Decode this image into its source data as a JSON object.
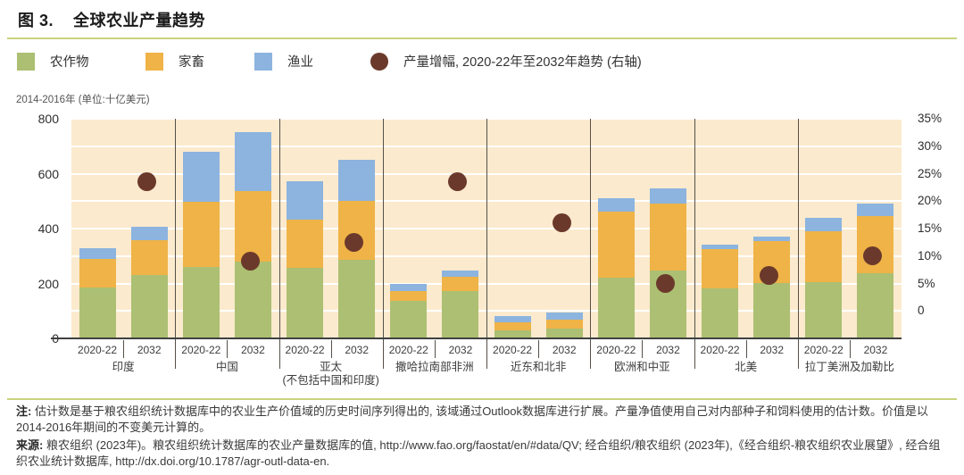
{
  "figure": {
    "title_prefix": "图 3.",
    "title": "全球农业产量趋势"
  },
  "legend": {
    "items": [
      {
        "label": "农作物",
        "shape": "square",
        "color": "#ACBF72"
      },
      {
        "label": "家畜",
        "shape": "square",
        "color": "#EFB347"
      },
      {
        "label": "渔业",
        "shape": "square",
        "color": "#8CB4DF"
      },
      {
        "label": "产量增幅, 2020-22年至2032年趋势 (右轴)",
        "shape": "circle",
        "color": "#6B392B"
      }
    ]
  },
  "chart_data": {
    "type": "bar",
    "stacked": true,
    "title": "全球农业产量趋势",
    "unit_label": "2014-2016年 (单位:十亿美元)",
    "series_names": [
      "农作物",
      "家畜",
      "渔业"
    ],
    "bar_labels": [
      "2020-22",
      "2032"
    ],
    "left_axis": {
      "min": 0,
      "max": 800,
      "ticks": [
        0,
        200,
        400,
        600,
        800
      ],
      "gridline_step": 100
    },
    "right_axis": {
      "tick_labels": [
        "0",
        "5%",
        "10%",
        "15%",
        "20%",
        "25%",
        "30%",
        "35%"
      ],
      "min_pct": 0,
      "max_pct": 35
    },
    "legend_note": "条形为堆积值(十亿美元, 左轴); 圆点为产量增幅(%, 右轴)",
    "groups": [
      {
        "name": "印度",
        "bars": [
          [
            185,
            104,
            39
          ],
          [
            230,
            128,
            48
          ]
        ],
        "growth_pct": 23.5
      },
      {
        "name": "中国",
        "bars": [
          [
            260,
            238,
            182
          ],
          [
            279,
            258,
            213
          ]
        ],
        "growth_pct": 9
      },
      {
        "name": "亚太",
        "name2": "(不包括中国和印度)",
        "bars": [
          [
            257,
            176,
            139
          ],
          [
            286,
            214,
            150
          ]
        ],
        "growth_pct": 12.5
      },
      {
        "name": "撒哈拉南部非洲",
        "bars": [
          [
            136,
            35,
            27
          ],
          [
            172,
            52,
            24
          ]
        ],
        "growth_pct": 23.5
      },
      {
        "name": "近东和北非",
        "bars": [
          [
            30,
            28,
            22
          ],
          [
            36,
            33,
            25
          ]
        ],
        "growth_pct": 16
      },
      {
        "name": "欧洲和中亚",
        "bars": [
          [
            222,
            240,
            50
          ],
          [
            247,
            244,
            56
          ]
        ],
        "growth_pct": 5
      },
      {
        "name": "北美",
        "bars": [
          [
            181,
            143,
            16
          ],
          [
            203,
            152,
            17
          ]
        ],
        "growth_pct": 6.5
      },
      {
        "name": "拉丁美洲及加勒比",
        "bars": [
          [
            205,
            184,
            50
          ],
          [
            237,
            207,
            46
          ]
        ],
        "growth_pct": 10
      }
    ]
  },
  "colors": {
    "crops": "#ACBF72",
    "livestock": "#EFB347",
    "fisheries": "#8CB4DF",
    "growth_dot": "#6B392B",
    "plot_bg": "#FBEACD",
    "divider": "#C9D37D",
    "grid": "#FFFFFF",
    "axis_line": "#404040",
    "separator": "#56504A"
  },
  "notes": {
    "note_label": "注:",
    "note_text": "估计数是基于粮农组织统计数据库中的农业生产价值域的历史时间序列得出的, 该域通过Outlook数据库进行扩展。产量净值使用自己对内部种子和饲料使用的估计数。价值是以2014-2016年期间的不变美元计算的。",
    "source_label": "来源:",
    "source_text": "粮农组织 (2023年)。粮农组织统计数据库的农业产量数据库的值, http://www.fao.org/faostat/en/#data/QV; 经合组织/粮农组织 (2023年),《经合组织-粮农组织农业展望》, 经合组织农业统计数据库, http://dx.doi.org/10.1787/agr-outl-data-en."
  }
}
